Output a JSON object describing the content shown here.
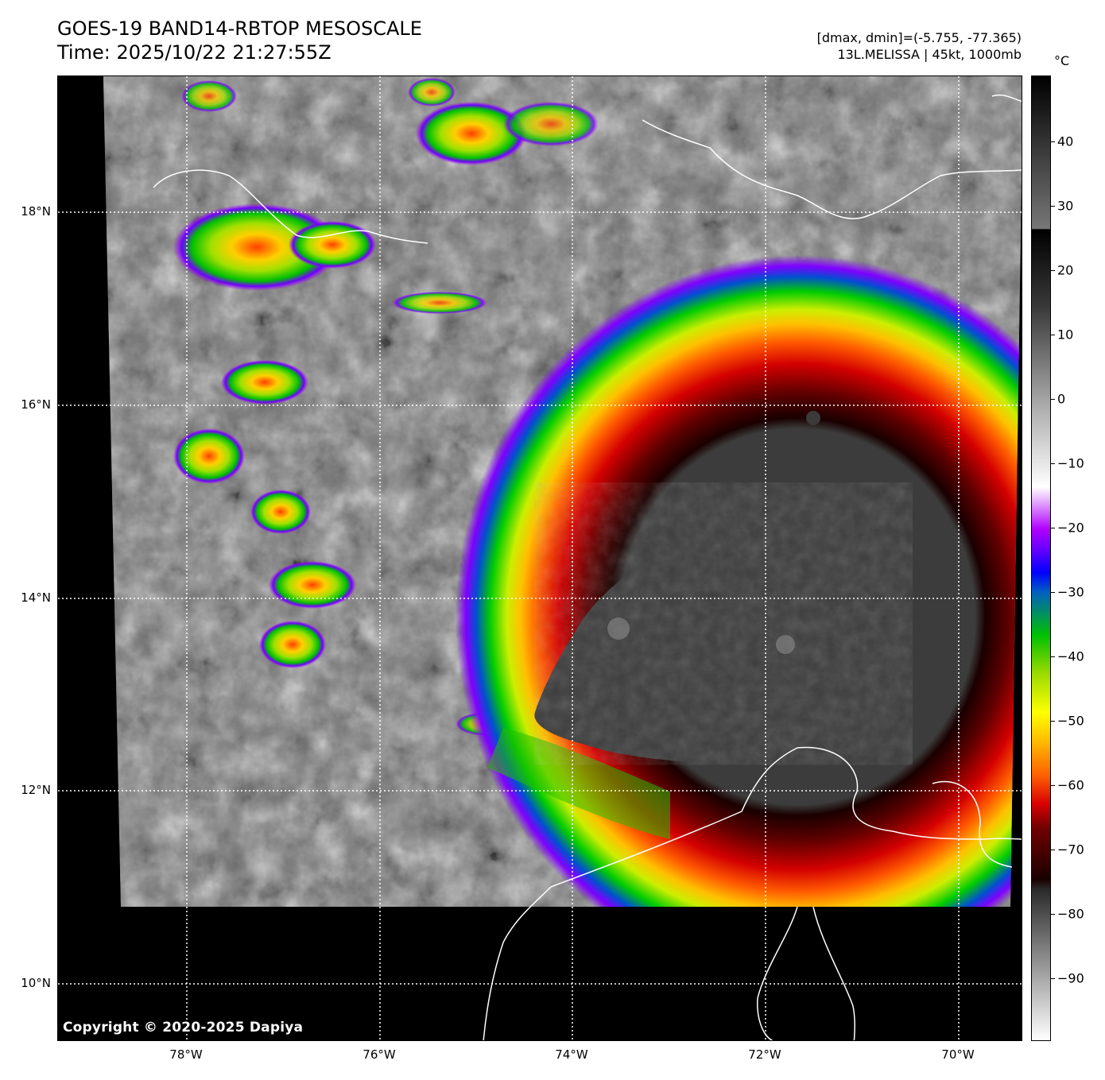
{
  "header": {
    "title": "GOES-19 BAND14-RBTOP MESOSCALE",
    "time": "Time: 2025/10/22 21:27:55Z",
    "range": "[dmax, dmin]=(-5.755, -77.365)",
    "storm": "13L.MELISSA | 45kt, 1000mb"
  },
  "colorbar": {
    "unit": "°C",
    "ticks": [
      "40",
      "30",
      "20",
      "10",
      "0",
      "−10",
      "−20",
      "−30",
      "−40",
      "−50",
      "−60",
      "−70",
      "−80",
      "−90"
    ]
  },
  "axes": {
    "lon_labels": [
      "78°W",
      "76°W",
      "74°W",
      "72°W",
      "70°W"
    ],
    "lat_labels": [
      "18°N",
      "16°N",
      "14°N",
      "12°N",
      "10°N"
    ]
  },
  "copyright": "Copyright © 2020-2025 Dapiya"
}
